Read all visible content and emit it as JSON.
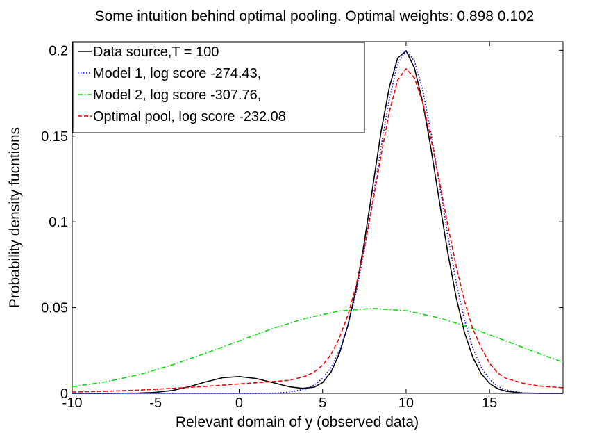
{
  "chart_data": {
    "type": "line",
    "title": "Some intuition behind optimal pooling.  Optimal weights:  0.898  0.102",
    "xlabel": "Relevant domain of y (observed data)",
    "ylabel": "Probability density fucntions",
    "xlim": [
      -10,
      19.4
    ],
    "ylim": [
      0,
      0.205
    ],
    "xticks": [
      -10,
      -5,
      0,
      5,
      10,
      15
    ],
    "xtick_labels": [
      "-10",
      "-5",
      "0",
      "5",
      "10",
      "15"
    ],
    "yticks": [
      0,
      0.05,
      0.1,
      0.15,
      0.2
    ],
    "ytick_labels": [
      "0",
      "0.05",
      "0.1",
      "0.15",
      "0.2"
    ],
    "grid": false,
    "legend_position": "top-left",
    "series": [
      {
        "name": "Data source,T = 100",
        "color": "#000000",
        "dash": "solid",
        "x": [
          -10,
          -8,
          -6,
          -5,
          -4,
          -3,
          -2,
          -1,
          0,
          1,
          2,
          3,
          3.8,
          4.5,
          5,
          5.5,
          6,
          6.5,
          7,
          7.5,
          8,
          8.5,
          9,
          9.5,
          10,
          10.5,
          11,
          11.5,
          12,
          12.5,
          13,
          13.5,
          14,
          14.5,
          15,
          15.5,
          16,
          17,
          18,
          19.4
        ],
        "y": [
          0.0,
          0.0,
          0.0002,
          0.0006,
          0.0017,
          0.0039,
          0.0067,
          0.0091,
          0.0098,
          0.0087,
          0.0063,
          0.0039,
          0.0029,
          0.0036,
          0.0063,
          0.0124,
          0.0231,
          0.0392,
          0.0605,
          0.0881,
          0.1203,
          0.1527,
          0.1786,
          0.1955,
          0.1997,
          0.1897,
          0.1695,
          0.1422,
          0.1117,
          0.0818,
          0.0559,
          0.0355,
          0.021,
          0.0115,
          0.0058,
          0.0027,
          0.0012,
          0.0002,
          0.0,
          0.0
        ]
      },
      {
        "name": "Model 1, log score  -274.43,",
        "color": "#0000ff",
        "dash": "dotted",
        "x": [
          -10,
          -6,
          -4,
          -2,
          0,
          2,
          3,
          4,
          4.5,
          5,
          5.5,
          6,
          6.5,
          7,
          7.5,
          8,
          8.5,
          9,
          9.5,
          10,
          10.5,
          11,
          11.5,
          12,
          12.5,
          13,
          13.5,
          14,
          14.5,
          15,
          15.5,
          16,
          17,
          18,
          19.4
        ],
        "y": [
          0.0,
          0.0,
          0.0,
          0.0,
          0.0,
          0.0001,
          0.0007,
          0.0026,
          0.0049,
          0.0087,
          0.0149,
          0.0247,
          0.039,
          0.0585,
          0.0834,
          0.1126,
          0.1434,
          0.1718,
          0.1925,
          0.1998,
          0.1937,
          0.1766,
          0.1513,
          0.1218,
          0.0918,
          0.0648,
          0.0428,
          0.0264,
          0.0152,
          0.0082,
          0.0041,
          0.0019,
          0.0003,
          0.0001,
          0.0
        ]
      },
      {
        "name": "Model 2, log score  -307.76,",
        "color": "#00e000",
        "dash": "dashdot",
        "x": [
          -10,
          -8,
          -6,
          -4,
          -2,
          0,
          2,
          4,
          6,
          8,
          10,
          12,
          14,
          16,
          18,
          19.4
        ],
        "y": [
          0.0039,
          0.0067,
          0.0109,
          0.0166,
          0.0234,
          0.0306,
          0.0378,
          0.0438,
          0.048,
          0.0495,
          0.0482,
          0.044,
          0.0378,
          0.0305,
          0.0231,
          0.0182
        ]
      },
      {
        "name": "Optimal pool, log score  -232.08",
        "color": "#ff0000",
        "dash": "dashed",
        "x": [
          -10,
          -8,
          -6,
          -4,
          -2,
          0,
          2,
          3,
          4,
          4.5,
          5,
          5.5,
          6,
          6.5,
          7,
          7.5,
          8,
          8.5,
          9,
          9.5,
          10,
          10.5,
          11,
          11.5,
          12,
          12.5,
          13,
          13.5,
          14,
          14.5,
          15,
          15.5,
          16,
          17,
          18,
          19.4
        ],
        "y": [
          0.0008,
          0.0012,
          0.0019,
          0.0029,
          0.0041,
          0.0055,
          0.0069,
          0.0076,
          0.0101,
          0.0125,
          0.0164,
          0.0226,
          0.0323,
          0.0453,
          0.0625,
          0.0848,
          0.1111,
          0.1388,
          0.1643,
          0.1827,
          0.1893,
          0.1839,
          0.1693,
          0.1479,
          0.1236,
          0.0977,
          0.0742,
          0.0538,
          0.0375,
          0.0267,
          0.0175,
          0.0118,
          0.0087,
          0.0059,
          0.0043,
          0.0033
        ]
      }
    ]
  }
}
